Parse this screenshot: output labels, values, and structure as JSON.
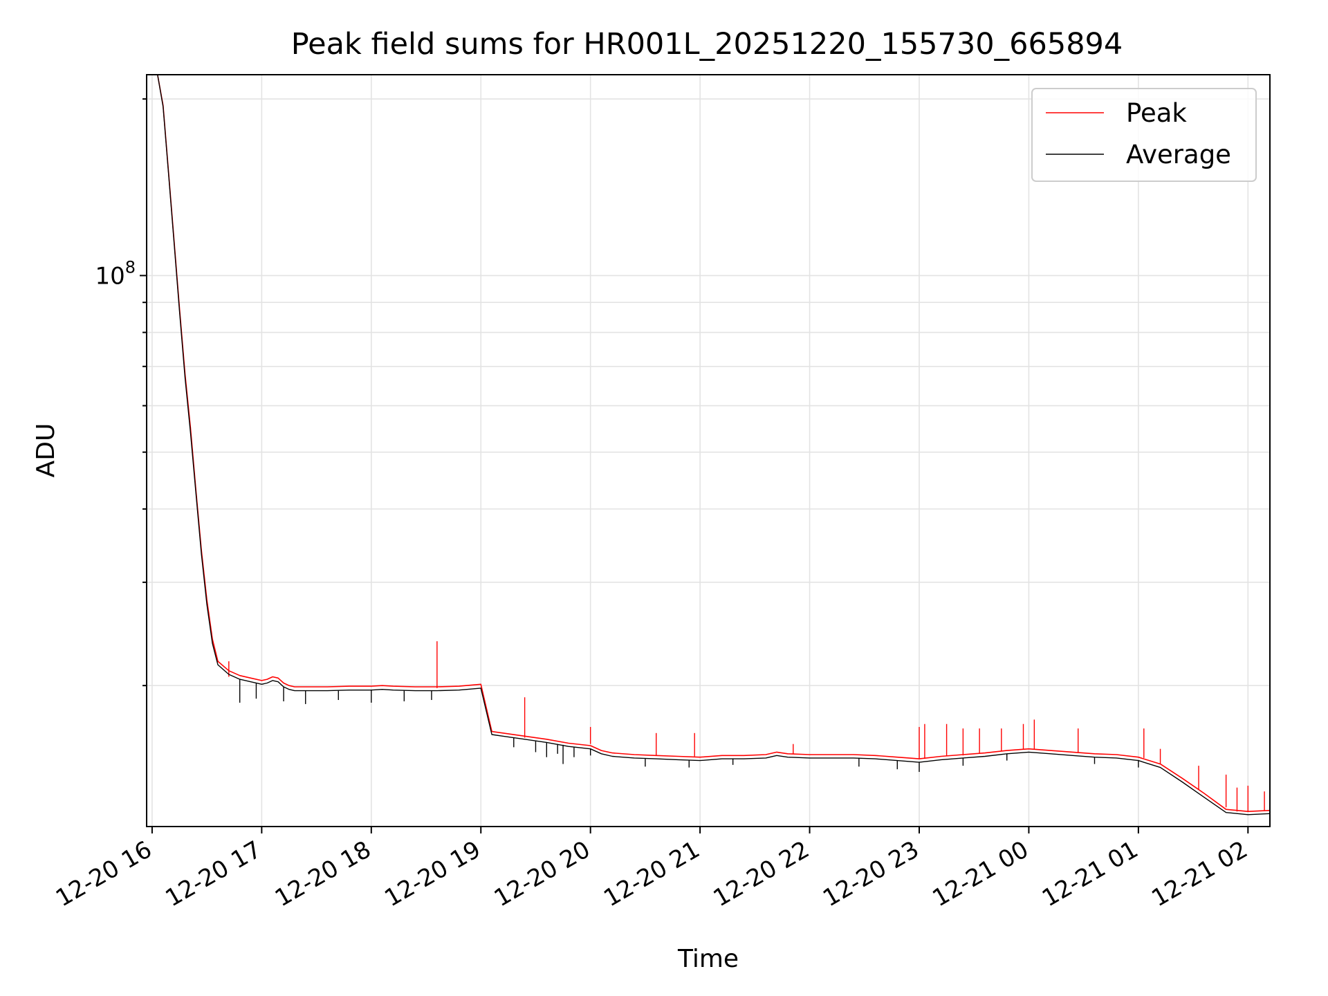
{
  "chart_data": {
    "type": "line",
    "title": "Peak field sums for HR001L_20251220_155730_665894",
    "xlabel": "Time",
    "ylabel": "ADU",
    "yscale": "log",
    "ylim": [
      11500000,
      220000000
    ],
    "xlim_hours": [
      -0.05,
      10.2
    ],
    "grid": true,
    "legend_location": "top-right",
    "x_tick_hours": [
      0,
      1,
      2,
      3,
      4,
      5,
      6,
      7,
      8,
      9,
      10
    ],
    "x_tick_labels": [
      "12-20 16",
      "12-20 17",
      "12-20 18",
      "12-20 19",
      "12-20 20",
      "12-20 21",
      "12-20 22",
      "12-20 23",
      "12-21 00",
      "12-21 01",
      "12-21 02"
    ],
    "y_tick_labels": [
      {
        "value": 100000000,
        "mantissa": "10",
        "exponent": "8"
      }
    ],
    "y_minor_ticks": [
      20000000,
      30000000,
      40000000,
      50000000,
      60000000,
      70000000,
      80000000,
      90000000,
      200000000
    ],
    "x_units": "hours after 12-20 16:00",
    "series": [
      {
        "name": "Peak",
        "color": "#ff0000",
        "x": [
          0.05,
          0.1,
          0.15,
          0.2,
          0.25,
          0.3,
          0.35,
          0.4,
          0.45,
          0.5,
          0.55,
          0.6,
          0.7,
          0.8,
          0.9,
          1.0,
          1.05,
          1.1,
          1.15,
          1.2,
          1.25,
          1.3,
          1.4,
          1.6,
          1.8,
          2.0,
          2.1,
          2.2,
          2.4,
          2.6,
          2.8,
          3.0,
          3.1,
          3.2,
          3.4,
          3.6,
          3.8,
          4.0,
          4.1,
          4.2,
          4.4,
          4.6,
          4.8,
          5.0,
          5.2,
          5.4,
          5.6,
          5.7,
          5.8,
          6.0,
          6.2,
          6.4,
          6.6,
          6.8,
          7.0,
          7.2,
          7.4,
          7.6,
          7.8,
          8.0,
          8.2,
          8.4,
          8.6,
          8.8,
          9.0,
          9.2,
          9.4,
          9.6,
          9.8,
          10.0,
          10.2
        ],
        "y": [
          220000000,
          195000000,
          150000000,
          115000000,
          88000000,
          68000000,
          55000000,
          43000000,
          34000000,
          28000000,
          24000000,
          22000000,
          21200000,
          20800000,
          20600000,
          20400000,
          20500000,
          20700000,
          20600000,
          20200000,
          20000000,
          19900000,
          19900000,
          19900000,
          19950000,
          19950000,
          20000000,
          19950000,
          19900000,
          19900000,
          19950000,
          20100000,
          16700000,
          16600000,
          16400000,
          16200000,
          15950000,
          15800000,
          15500000,
          15350000,
          15250000,
          15200000,
          15150000,
          15100000,
          15200000,
          15200000,
          15250000,
          15400000,
          15300000,
          15250000,
          15250000,
          15250000,
          15200000,
          15100000,
          15000000,
          15150000,
          15250000,
          15350000,
          15500000,
          15600000,
          15500000,
          15400000,
          15300000,
          15250000,
          15100000,
          14700000,
          13900000,
          13100000,
          12300000,
          12200000,
          12250000
        ],
        "spikes": [
          [
            0.7,
            20700000,
            22000000
          ],
          [
            2.6,
            19800000,
            23800000
          ],
          [
            3.4,
            16300000,
            19100000
          ],
          [
            4.0,
            15900000,
            17000000
          ],
          [
            4.6,
            15200000,
            16600000
          ],
          [
            4.95,
            15150000,
            16600000
          ],
          [
            5.85,
            15300000,
            15900000
          ],
          [
            7.0,
            15000000,
            17000000
          ],
          [
            7.05,
            15000000,
            17200000
          ],
          [
            7.25,
            15150000,
            17200000
          ],
          [
            7.4,
            15200000,
            16900000
          ],
          [
            7.55,
            15300000,
            16900000
          ],
          [
            7.75,
            15450000,
            16900000
          ],
          [
            7.95,
            15550000,
            17200000
          ],
          [
            8.05,
            15600000,
            17500000
          ],
          [
            8.45,
            15350000,
            16900000
          ],
          [
            9.05,
            15050000,
            16900000
          ],
          [
            9.2,
            14700000,
            15600000
          ],
          [
            9.55,
            13300000,
            14600000
          ],
          [
            9.8,
            12400000,
            14100000
          ],
          [
            9.9,
            12200000,
            13400000
          ],
          [
            10.0,
            12200000,
            13500000
          ],
          [
            10.15,
            12250000,
            13200000
          ]
        ]
      },
      {
        "name": "Average",
        "color": "#000000",
        "x": [
          0.05,
          0.1,
          0.15,
          0.2,
          0.25,
          0.3,
          0.35,
          0.4,
          0.45,
          0.5,
          0.55,
          0.6,
          0.7,
          0.8,
          0.9,
          1.0,
          1.05,
          1.1,
          1.15,
          1.2,
          1.25,
          1.3,
          1.4,
          1.6,
          1.8,
          2.0,
          2.1,
          2.2,
          2.4,
          2.6,
          2.8,
          3.0,
          3.1,
          3.2,
          3.4,
          3.6,
          3.8,
          4.0,
          4.1,
          4.2,
          4.4,
          4.6,
          4.8,
          5.0,
          5.2,
          5.4,
          5.6,
          5.7,
          5.8,
          6.0,
          6.2,
          6.4,
          6.6,
          6.8,
          7.0,
          7.2,
          7.4,
          7.6,
          7.8,
          8.0,
          8.2,
          8.4,
          8.6,
          8.8,
          9.0,
          9.2,
          9.4,
          9.6,
          9.8,
          10.0,
          10.2
        ],
        "y": [
          220000000,
          194000000,
          149000000,
          114000000,
          87000000,
          67000000,
          54000000,
          42500000,
          33500000,
          27500000,
          23600000,
          21700000,
          20900000,
          20500000,
          20300000,
          20100000,
          20200000,
          20400000,
          20300000,
          19900000,
          19700000,
          19600000,
          19600000,
          19600000,
          19650000,
          19650000,
          19700000,
          19650000,
          19600000,
          19600000,
          19650000,
          19800000,
          16500000,
          16400000,
          16200000,
          16000000,
          15750000,
          15600000,
          15300000,
          15150000,
          15050000,
          15000000,
          14950000,
          14900000,
          15000000,
          15000000,
          15050000,
          15200000,
          15100000,
          15050000,
          15050000,
          15050000,
          15000000,
          14900000,
          14800000,
          14950000,
          15050000,
          15150000,
          15300000,
          15400000,
          15300000,
          15200000,
          15100000,
          15050000,
          14900000,
          14500000,
          13700000,
          12900000,
          12150000,
          12050000,
          12100000
        ],
        "dips": [
          [
            0.8,
            20500000,
            18700000
          ],
          [
            0.95,
            20200000,
            19000000
          ],
          [
            1.2,
            19900000,
            18800000
          ],
          [
            1.4,
            19600000,
            18600000
          ],
          [
            1.7,
            19600000,
            18900000
          ],
          [
            2.0,
            19650000,
            18700000
          ],
          [
            2.3,
            19600000,
            18800000
          ],
          [
            2.55,
            19600000,
            18900000
          ],
          [
            3.3,
            16300000,
            15700000
          ],
          [
            3.5,
            16100000,
            15400000
          ],
          [
            3.6,
            16000000,
            15100000
          ],
          [
            3.7,
            15900000,
            15300000
          ],
          [
            3.75,
            15850000,
            14700000
          ],
          [
            3.85,
            15700000,
            15100000
          ],
          [
            4.0,
            15600000,
            15200000
          ],
          [
            4.5,
            15000000,
            14550000
          ],
          [
            4.9,
            14900000,
            14500000
          ],
          [
            5.3,
            15000000,
            14650000
          ],
          [
            6.45,
            15050000,
            14550000
          ],
          [
            6.8,
            14900000,
            14400000
          ],
          [
            7.0,
            14800000,
            14250000
          ],
          [
            7.4,
            15050000,
            14600000
          ],
          [
            7.8,
            15300000,
            14900000
          ],
          [
            8.6,
            15100000,
            14700000
          ],
          [
            9.0,
            14900000,
            14500000
          ]
        ]
      }
    ]
  }
}
